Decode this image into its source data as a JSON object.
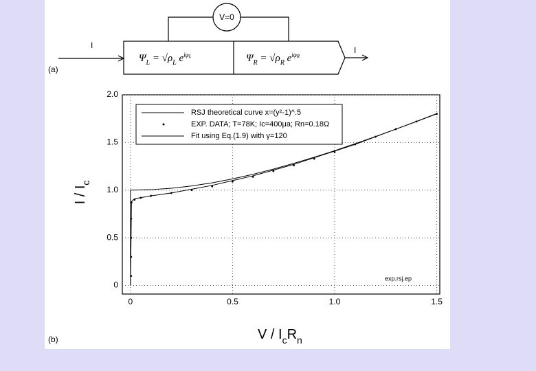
{
  "diagram": {
    "panel_label": "(a)",
    "input_label": "I",
    "output_label": "I",
    "voltmeter": "V=0",
    "left_box": {
      "psi": "Ψ",
      "psi_sub": "L",
      "eq": " = √",
      "rho": "ρ",
      "rho_sub": "L",
      "e": " e",
      "exp": "iφ",
      "exp_sub": "L"
    },
    "right_box": {
      "psi": "Ψ",
      "psi_sub": "R",
      "eq": " = √",
      "rho": "ρ",
      "rho_sub": "R",
      "e": " e",
      "exp": "iφ",
      "exp_sub": "R"
    }
  },
  "chart_data": {
    "type": "line",
    "panel_label": "(b)",
    "annotation": "exp.rsj.ep",
    "xlabel": "V / I",
    "xlabel_sub1": "c",
    "xlabel_mid": "R",
    "xlabel_sub2": "n",
    "ylabel": "I / I",
    "ylabel_sub": "c",
    "xlim": [
      -0.04,
      1.515
    ],
    "ylim": [
      -0.09,
      2.0
    ],
    "xticks": [
      0,
      0.5,
      {
        "value": 1,
        "label": "1.0"
      },
      1.5
    ],
    "yticks": [
      0,
      0.5,
      {
        "value": 1,
        "label": "1.0"
      },
      1.5,
      {
        "value": 2,
        "label": "2.0"
      }
    ],
    "grid": true,
    "legend": "upper left",
    "series": [
      {
        "name": "RSJ theoretical curve x=(y²-1)^.5",
        "color": "#000000",
        "style": "line",
        "x": [
          0,
          0,
          0.1,
          0.2,
          0.3,
          0.4,
          0.5,
          0.6,
          0.7,
          0.8,
          0.9,
          1.0,
          1.1,
          1.2,
          1.3,
          1.4,
          1.5
        ],
        "values": [
          0,
          1,
          1.005,
          1.02,
          1.044,
          1.077,
          1.118,
          1.166,
          1.221,
          1.281,
          1.345,
          1.414,
          1.487,
          1.562,
          1.64,
          1.72,
          1.803
        ]
      },
      {
        "name": "EXP. DATA; T=78K; Ic=400μa; Rn=0.18Ω",
        "color": "#000000",
        "style": "points",
        "x": [
          0.003,
          0.003,
          0.003,
          0.003,
          0.005,
          0.02,
          0.05,
          0.1,
          0.2,
          0.3,
          0.4,
          0.5,
          0.6,
          0.7,
          0.8,
          0.9,
          1.0,
          1.1,
          1.2,
          1.3,
          1.4,
          1.5
        ],
        "values": [
          0.1,
          0.3,
          0.5,
          0.7,
          0.87,
          0.9,
          0.92,
          0.94,
          0.97,
          1.0,
          1.04,
          1.09,
          1.14,
          1.2,
          1.26,
          1.33,
          1.4,
          1.48,
          1.56,
          1.64,
          1.72,
          1.8
        ]
      },
      {
        "name": "Fit using Eq.(1.9) with γ=120",
        "color": "#000000",
        "style": "line",
        "x": [
          0,
          0.005,
          0.02,
          0.1,
          0.2,
          0.3,
          0.4,
          0.5,
          0.6,
          0.7,
          0.8,
          0.9,
          1.0,
          1.1,
          1.2,
          1.3,
          1.4,
          1.5
        ],
        "values": [
          0,
          0.88,
          0.91,
          0.94,
          0.97,
          1.01,
          1.05,
          1.1,
          1.15,
          1.21,
          1.27,
          1.34,
          1.41,
          1.48,
          1.56,
          1.64,
          1.72,
          1.8
        ]
      }
    ]
  }
}
